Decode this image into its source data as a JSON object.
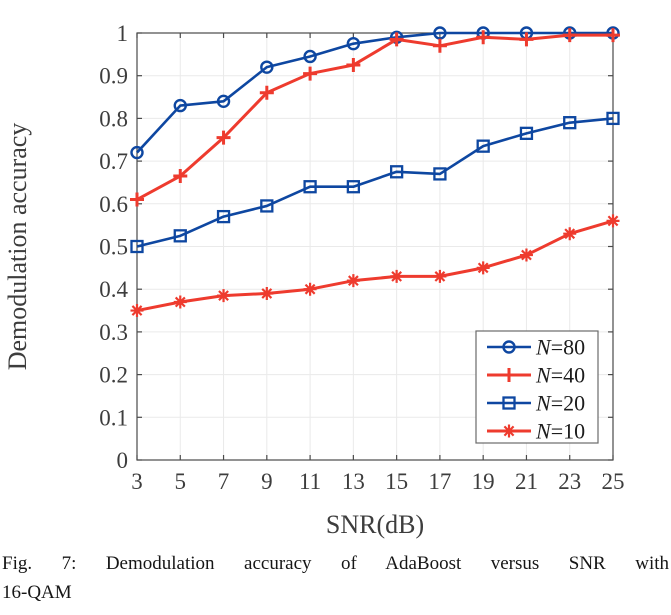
{
  "figure": {
    "caption_line1": "Fig. 7: Demodulation accuracy of AdaBoost versus SNR with",
    "caption_line2": "16-QAM"
  },
  "chart_data": {
    "type": "line",
    "title": "",
    "xlabel": "SNR(dB)",
    "ylabel": "Demodulation accuracy",
    "x": [
      3,
      5,
      7,
      9,
      11,
      13,
      15,
      17,
      19,
      21,
      23,
      25
    ],
    "xlim": [
      3,
      25
    ],
    "ylim": [
      0,
      1
    ],
    "xtick_labels": [
      "3",
      "5",
      "7",
      "9",
      "11",
      "13",
      "15",
      "17",
      "19",
      "21",
      "23",
      "25"
    ],
    "ytick_values": [
      0,
      0.1,
      0.2,
      0.3,
      0.4,
      0.5,
      0.6,
      0.7,
      0.8,
      0.9,
      1
    ],
    "ytick_labels": [
      "0",
      "0.1",
      "0.2",
      "0.3",
      "0.4",
      "0.5",
      "0.6",
      "0.7",
      "0.8",
      "0.9",
      "1"
    ],
    "grid": true,
    "legend_position": "lower right",
    "axis_color": "#4A4A4A",
    "grid_color": "#EAEAEA",
    "tick_text_color": "#3D3D3D",
    "legend_border_color": "#6A6A6A",
    "series": [
      {
        "name": "N=80",
        "legend_var": "N",
        "legend_rest": "=80",
        "color": "#0E47A1",
        "marker": "circle",
        "line_width": 2.6,
        "values": [
          0.72,
          0.83,
          0.84,
          0.92,
          0.945,
          0.975,
          0.99,
          1.0,
          1.0,
          1.0,
          1.0,
          1.0
        ]
      },
      {
        "name": "N=40",
        "legend_var": "N",
        "legend_rest": "=40",
        "color": "#EE3B2E",
        "marker": "plus",
        "line_width": 3.0,
        "values": [
          0.61,
          0.665,
          0.755,
          0.86,
          0.905,
          0.925,
          0.985,
          0.97,
          0.99,
          0.985,
          0.995,
          0.995
        ]
      },
      {
        "name": "N=20",
        "legend_var": "N",
        "legend_rest": "=20",
        "color": "#0E47A1",
        "marker": "square",
        "line_width": 2.6,
        "values": [
          0.5,
          0.525,
          0.57,
          0.595,
          0.64,
          0.64,
          0.675,
          0.67,
          0.735,
          0.765,
          0.79,
          0.8
        ]
      },
      {
        "name": "N=10",
        "legend_var": "N",
        "legend_rest": "=10",
        "color": "#EE3B2E",
        "marker": "asterisk",
        "line_width": 3.0,
        "values": [
          0.35,
          0.37,
          0.385,
          0.39,
          0.4,
          0.42,
          0.43,
          0.43,
          0.45,
          0.48,
          0.53,
          0.56
        ]
      }
    ]
  }
}
